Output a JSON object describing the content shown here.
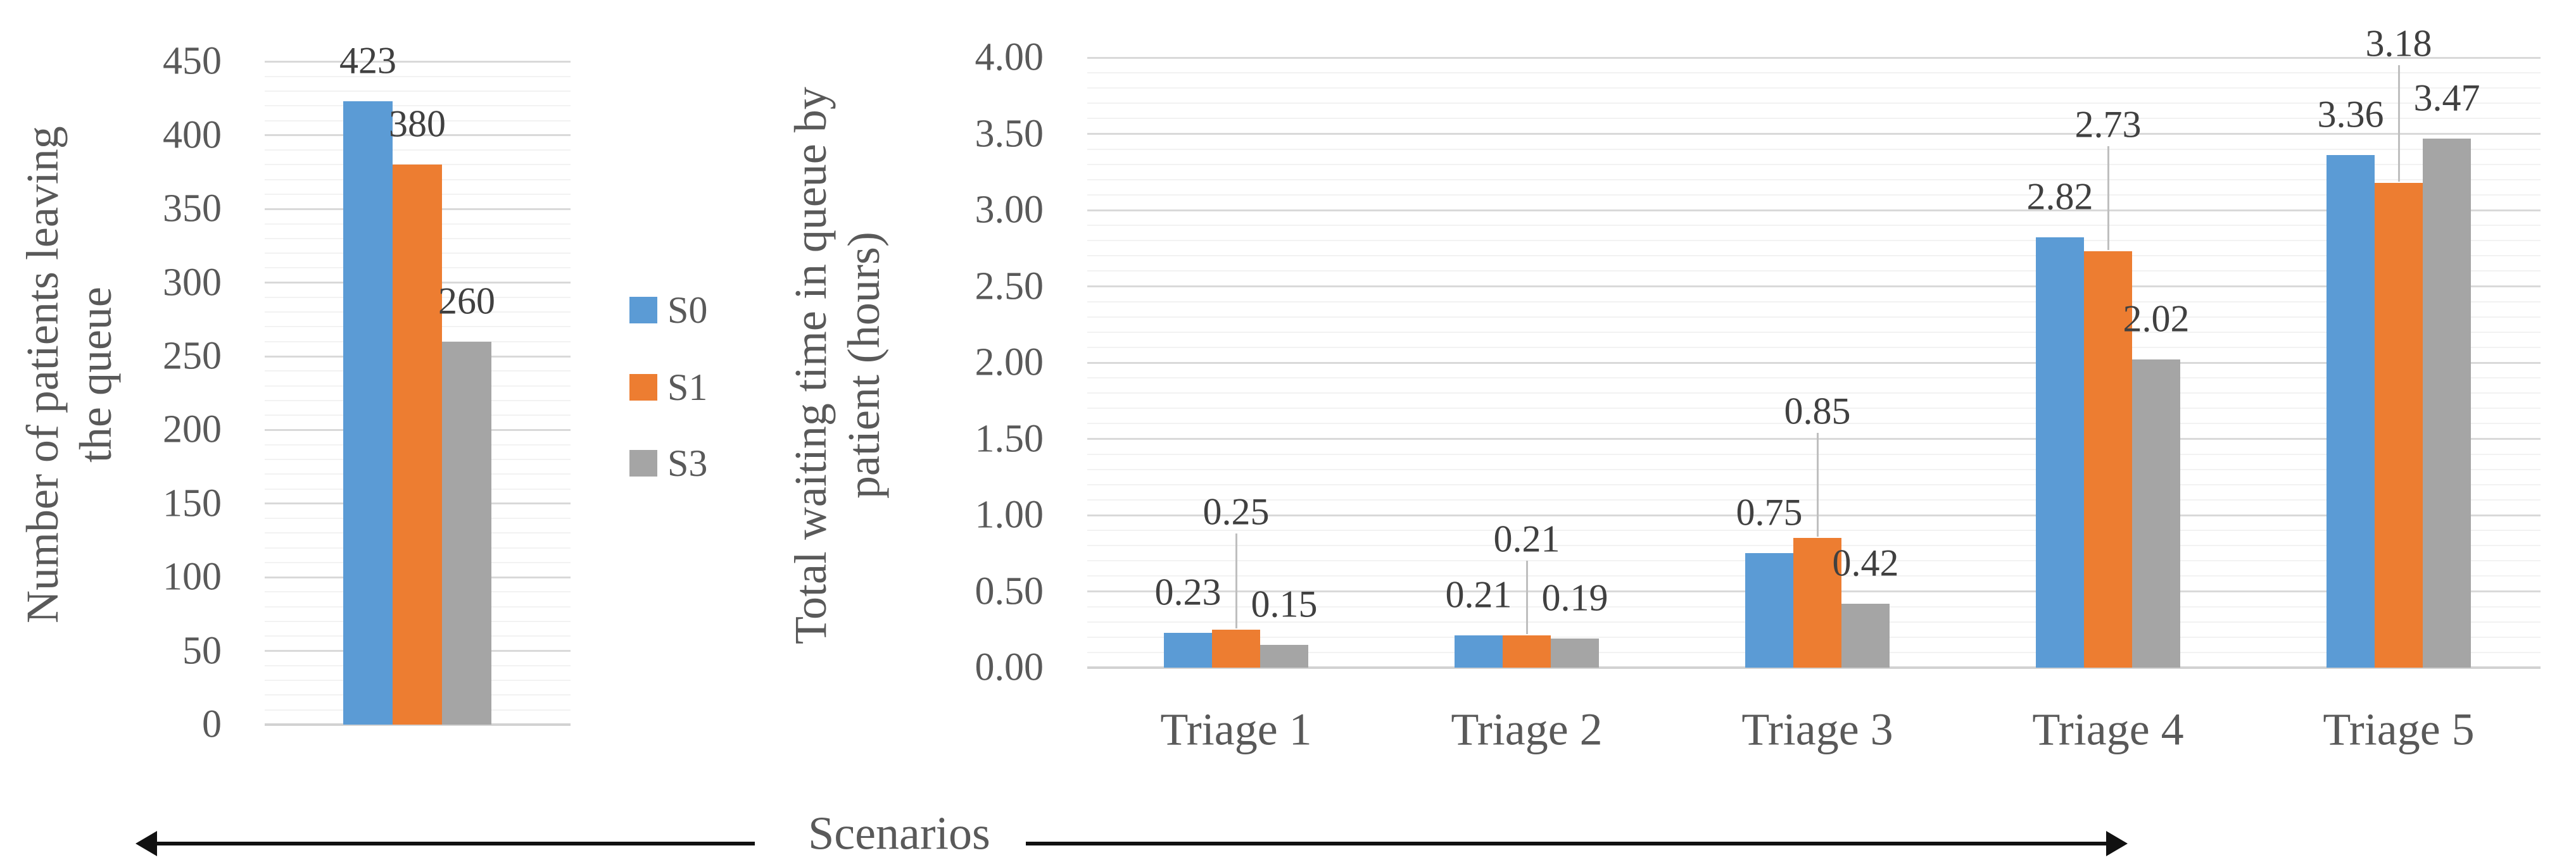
{
  "colors": {
    "s0": "#5B9BD5",
    "s1": "#ED7D31",
    "s3": "#A5A5A5",
    "grid_major": "#D9D9D9",
    "grid_minor": "#F2F2F2",
    "axis_line": "#D2D2D2",
    "tick_text": "#595959",
    "data_label_text": "#404040",
    "leader_line": "#BFBFBF",
    "arrow": "#111111"
  },
  "legend": {
    "items": [
      {
        "label": "S0",
        "color": "#5B9BD5"
      },
      {
        "label": "S1",
        "color": "#ED7D31"
      },
      {
        "label": "S3",
        "color": "#A5A5A5"
      }
    ]
  },
  "bottom_axis": {
    "label": "Scenarios"
  },
  "chart_data": [
    {
      "type": "bar",
      "title_lines": [
        "Number of patients leaving",
        "the queue"
      ],
      "ylabel": "Number of patients leaving the queue",
      "categories": [
        ""
      ],
      "series": [
        {
          "name": "S0",
          "values": [
            423
          ]
        },
        {
          "name": "S1",
          "values": [
            380
          ]
        },
        {
          "name": "S3",
          "values": [
            260
          ]
        }
      ],
      "data_labels": [
        [
          "423"
        ],
        [
          "380"
        ],
        [
          "260"
        ]
      ],
      "ylim": [
        0,
        450
      ],
      "ytick_step": 50,
      "yminor_step": 10,
      "tick_format": "int",
      "grid": true,
      "legend_position": "right"
    },
    {
      "type": "bar",
      "title_lines": [
        "Total waiting time in queue by",
        "patient (hours)"
      ],
      "ylabel": "Total waiting time in queue by patient (hours)",
      "categories": [
        "Triage 1",
        "Triage 2",
        "Triage 3",
        "Triage 4",
        "Triage 5"
      ],
      "series": [
        {
          "name": "S0",
          "values": [
            0.23,
            0.21,
            0.75,
            2.82,
            3.36
          ]
        },
        {
          "name": "S1",
          "values": [
            0.25,
            0.21,
            0.85,
            2.73,
            3.18
          ]
        },
        {
          "name": "S3",
          "values": [
            0.15,
            0.19,
            0.42,
            2.02,
            3.47
          ]
        }
      ],
      "data_labels": [
        [
          "0.23",
          "0.21",
          "0.75",
          "2.82",
          "3.36"
        ],
        [
          "0.25",
          "0.21",
          "0.85",
          "2.73",
          "3.18"
        ],
        [
          "0.15",
          "0.19",
          "0.42",
          "2.02",
          "3.47"
        ]
      ],
      "ylim": [
        0,
        4
      ],
      "ytick_step": 0.5,
      "yminor_step": 0.1,
      "tick_format": "2dp",
      "grid": true
    }
  ]
}
